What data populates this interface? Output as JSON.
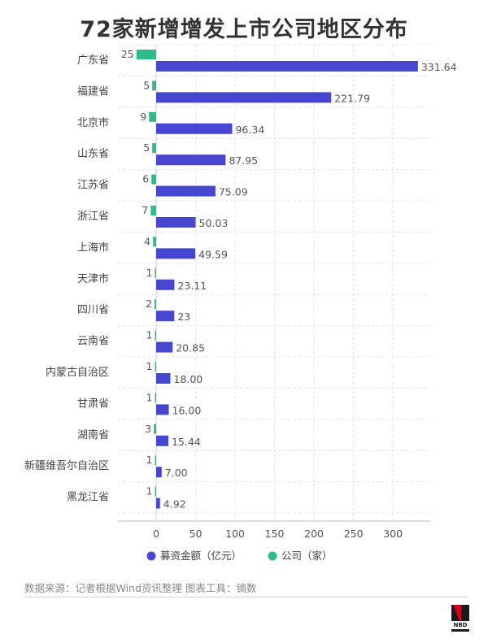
{
  "title": "72家新增增发上市公司地区分布",
  "source_note": "数据来源：记者根据Wind资讯整理 图表工具：镝数",
  "logo_text": "NBD",
  "colors": {
    "blue": "#4646d0",
    "green": "#2ebd8a",
    "grid": "#e3e3e3",
    "axis": "#999999",
    "label": "#555555"
  },
  "chart_data": {
    "type": "bar",
    "orientation": "horizontal",
    "categories": [
      "广东省",
      "福建省",
      "北京市",
      "山东省",
      "江苏省",
      "浙江省",
      "上海市",
      "天津市",
      "四川省",
      "云南省",
      "内蒙古自治区",
      "甘肃省",
      "湖南省",
      "新疆维吾尔自治区",
      "黑龙江省"
    ],
    "series": [
      {
        "name": "募资金额（亿元）",
        "color": "#4646d0",
        "values": [
          331.64,
          221.79,
          96.34,
          87.95,
          75.09,
          50.03,
          49.59,
          23.11,
          23,
          20.85,
          18.0,
          16.0,
          15.44,
          7.0,
          4.92
        ],
        "labels": [
          "331.64",
          "221.79",
          "96.34",
          "87.95",
          "75.09",
          "50.03",
          "49.59",
          "23.11",
          "23",
          "20.85",
          "18.00",
          "16.00",
          "15.44",
          "7.00",
          "4.92"
        ]
      },
      {
        "name": "公司（家）",
        "color": "#2ebd8a",
        "values": [
          25,
          5,
          9,
          5,
          6,
          7,
          4,
          1,
          2,
          1,
          1,
          1,
          3,
          1,
          1
        ],
        "labels": [
          "25",
          "5",
          "9",
          "5",
          "6",
          "7",
          "4",
          "1",
          "2",
          "1",
          "1",
          "1",
          "3",
          "1",
          "1"
        ],
        "direction": "negative"
      }
    ],
    "xticks": [
      "0",
      "50",
      "100",
      "150",
      "200",
      "250",
      "300"
    ],
    "xlim": [
      -25,
      350
    ],
    "grid": true,
    "legend_position": "bottom"
  }
}
